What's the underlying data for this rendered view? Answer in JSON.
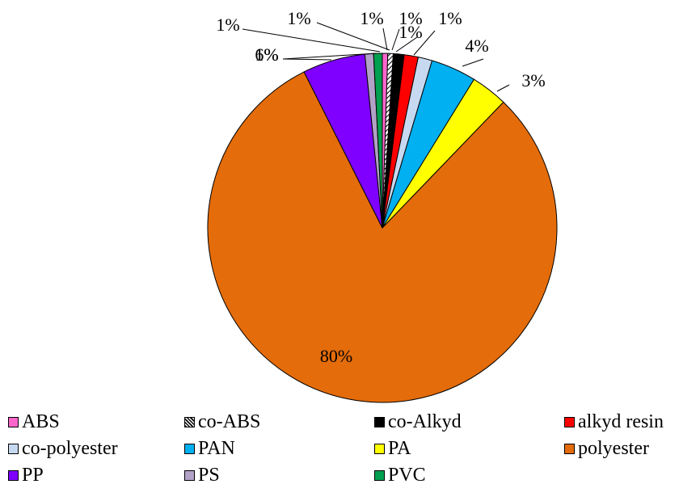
{
  "chart_data": {
    "type": "pie",
    "title": "",
    "slices": [
      {
        "name": "ABS",
        "value": 0.5,
        "label": "1%",
        "color": "#ff66cc"
      },
      {
        "name": "co-ABS",
        "value": 0.5,
        "label": "1%",
        "color": "#ffffff",
        "pattern": "hatch"
      },
      {
        "name": "co-Alkyd",
        "value": 1.0,
        "label": "1%",
        "color": "#000000"
      },
      {
        "name": "alkyd resin",
        "value": 1.3,
        "label": "1%",
        "color": "#ff0000"
      },
      {
        "name": "co-polyester",
        "value": 1.3,
        "label": "1%",
        "color": "#c6d9f1"
      },
      {
        "name": "PAN",
        "value": 4.2,
        "label": "4%",
        "color": "#00b0f0"
      },
      {
        "name": "PA",
        "value": 3.4,
        "label": "3%",
        "color": "#ffff00"
      },
      {
        "name": "polyester",
        "value": 80.4,
        "label": "80%",
        "color": "#e46c0a"
      },
      {
        "name": "PP",
        "value": 5.8,
        "label": "6%",
        "color": "#7f00ff"
      },
      {
        "name": "PS",
        "value": 0.8,
        "label": "1%",
        "color": "#b3a2c7"
      },
      {
        "name": "PVC",
        "value": 0.8,
        "label": "1%",
        "color": "#00a050"
      }
    ],
    "legend": {
      "position": "bottom",
      "columns": 4,
      "items": [
        "ABS",
        "co-ABS",
        "co-Alkyd",
        "alkyd resin",
        "co-polyester",
        "PAN",
        "PA",
        "polyester",
        "PP",
        "PS",
        "PVC"
      ]
    }
  }
}
